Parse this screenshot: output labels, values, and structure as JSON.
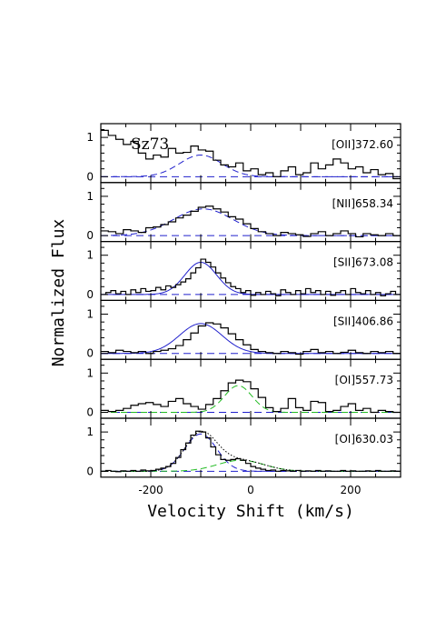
{
  "chart_data": {
    "type": "line",
    "star": "Sz73",
    "xlabel": "Velocity Shift (km/s)",
    "ylabel": "Normalized Flux",
    "xlim": [
      -300,
      300
    ],
    "xticks": [
      -200,
      0,
      200
    ],
    "yticks": [
      0,
      1
    ],
    "colors": {
      "observed": "#000000",
      "low_velocity_component": "#2020cc",
      "high_velocity_component": "#22bb22",
      "total_fit": "#000000",
      "zero_line": "#2020cc"
    },
    "panels": [
      {
        "label": "[OII]372.60",
        "ylim": [
          -0.15,
          1.35
        ],
        "bin_edges": [
          -300,
          -285,
          -270,
          -255,
          -240,
          -225,
          -210,
          -195,
          -180,
          -165,
          -150,
          -135,
          -120,
          -105,
          -90,
          -75,
          -60,
          -45,
          -30,
          -15,
          0,
          15,
          30,
          45,
          60,
          75,
          90,
          105,
          120,
          135,
          150,
          165,
          180,
          195,
          210,
          225,
          240,
          255,
          270,
          285,
          300
        ],
        "flux": [
          1.18,
          1.05,
          0.95,
          0.82,
          0.9,
          0.6,
          0.45,
          0.55,
          0.5,
          0.72,
          0.6,
          0.62,
          0.78,
          0.68,
          0.65,
          0.42,
          0.3,
          0.25,
          0.35,
          0.15,
          0.2,
          0.05,
          0.1,
          0.0,
          0.15,
          0.25,
          0.05,
          0.1,
          0.35,
          0.2,
          0.3,
          0.45,
          0.35,
          0.2,
          0.25,
          0.1,
          0.18,
          0.05,
          0.08,
          -0.05
        ],
        "components": [
          {
            "name": "blue",
            "center": -100,
            "fwhm": 100,
            "amp": 0.55,
            "dashed": true
          }
        ]
      },
      {
        "label": "[NII]658.34",
        "ylim": [
          -0.15,
          1.35
        ],
        "bin_edges": [
          -300,
          -285,
          -270,
          -255,
          -240,
          -225,
          -210,
          -195,
          -180,
          -165,
          -150,
          -135,
          -120,
          -105,
          -90,
          -75,
          -60,
          -45,
          -30,
          -15,
          0,
          15,
          30,
          45,
          60,
          75,
          90,
          105,
          120,
          135,
          150,
          165,
          180,
          195,
          210,
          225,
          240,
          255,
          270,
          285,
          300
        ],
        "flux": [
          0.12,
          0.1,
          0.05,
          0.15,
          0.12,
          0.08,
          0.2,
          0.22,
          0.28,
          0.35,
          0.45,
          0.52,
          0.62,
          0.72,
          0.75,
          0.68,
          0.6,
          0.48,
          0.42,
          0.3,
          0.18,
          0.1,
          0.05,
          0.0,
          0.08,
          0.05,
          0.02,
          -0.02,
          0.05,
          0.1,
          0.0,
          0.05,
          0.12,
          0.05,
          -0.03,
          0.05,
          0.02,
          0.0,
          0.05,
          0.0
        ],
        "components": [
          {
            "name": "blue",
            "center": -95,
            "fwhm": 140,
            "amp": 0.68,
            "dashed": true
          }
        ]
      },
      {
        "label": "[SII]673.08",
        "ylim": [
          -0.15,
          1.35
        ],
        "bin_edges": [
          -300,
          -290,
          -280,
          -270,
          -260,
          -250,
          -240,
          -230,
          -220,
          -210,
          -200,
          -190,
          -180,
          -170,
          -160,
          -150,
          -140,
          -130,
          -120,
          -110,
          -100,
          -90,
          -80,
          -70,
          -60,
          -50,
          -40,
          -30,
          -20,
          -10,
          0,
          10,
          20,
          30,
          40,
          50,
          60,
          70,
          80,
          90,
          100,
          110,
          120,
          130,
          140,
          150,
          160,
          170,
          180,
          190,
          200,
          210,
          220,
          230,
          240,
          250,
          260,
          270,
          280,
          290,
          300
        ],
        "flux": [
          0.0,
          0.05,
          0.1,
          0.02,
          0.08,
          0.0,
          0.12,
          0.05,
          0.15,
          0.08,
          0.1,
          0.18,
          0.12,
          0.22,
          0.18,
          0.25,
          0.32,
          0.4,
          0.55,
          0.68,
          0.9,
          0.82,
          0.7,
          0.55,
          0.42,
          0.3,
          0.2,
          0.15,
          0.05,
          0.1,
          -0.02,
          0.05,
          0.0,
          0.08,
          0.02,
          -0.03,
          0.12,
          0.05,
          0.0,
          0.1,
          0.02,
          0.15,
          0.05,
          0.1,
          0.0,
          0.08,
          -0.02,
          0.05,
          0.1,
          0.0,
          0.15,
          0.05,
          0.02,
          0.1,
          0.0,
          0.05,
          -0.03,
          0.02,
          0.08,
          0.0
        ],
        "components": [
          {
            "name": "blue",
            "center": -100,
            "fwhm": 75,
            "amp": 0.82,
            "dashed": false
          }
        ]
      },
      {
        "label": "[SII]406.86",
        "ylim": [
          -0.15,
          1.35
        ],
        "bin_edges": [
          -300,
          -285,
          -270,
          -255,
          -240,
          -225,
          -210,
          -195,
          -180,
          -165,
          -150,
          -135,
          -120,
          -105,
          -90,
          -75,
          -60,
          -45,
          -30,
          -15,
          0,
          15,
          30,
          45,
          60,
          75,
          90,
          105,
          120,
          135,
          150,
          165,
          180,
          195,
          210,
          225,
          240,
          255,
          270,
          285,
          300
        ],
        "flux": [
          0.05,
          0.02,
          0.08,
          0.05,
          0.02,
          0.05,
          0.0,
          0.05,
          0.08,
          0.12,
          0.2,
          0.35,
          0.52,
          0.7,
          0.78,
          0.75,
          0.65,
          0.5,
          0.35,
          0.22,
          0.1,
          0.05,
          0.02,
          0.0,
          0.05,
          0.02,
          -0.02,
          0.05,
          0.1,
          0.02,
          0.05,
          0.0,
          0.03,
          0.08,
          0.02,
          0.0,
          0.05,
          0.02,
          0.05,
          0.0
        ],
        "components": [
          {
            "name": "blue",
            "center": -100,
            "fwhm": 100,
            "amp": 0.76,
            "dashed": false
          }
        ]
      },
      {
        "label": "[OI]557.73",
        "ylim": [
          -0.15,
          1.35
        ],
        "bin_edges": [
          -300,
          -285,
          -270,
          -255,
          -240,
          -225,
          -210,
          -195,
          -180,
          -165,
          -150,
          -135,
          -120,
          -105,
          -90,
          -75,
          -60,
          -45,
          -30,
          -15,
          0,
          15,
          30,
          45,
          60,
          75,
          90,
          105,
          120,
          135,
          150,
          165,
          180,
          195,
          210,
          225,
          240,
          255,
          270,
          285,
          300
        ],
        "flux": [
          0.05,
          0.02,
          0.05,
          0.1,
          0.18,
          0.22,
          0.25,
          0.2,
          0.15,
          0.28,
          0.35,
          0.22,
          0.15,
          0.08,
          0.2,
          0.35,
          0.55,
          0.75,
          0.82,
          0.78,
          0.6,
          0.38,
          0.12,
          0.02,
          0.1,
          0.35,
          0.12,
          0.05,
          0.28,
          0.25,
          0.02,
          0.05,
          0.15,
          0.22,
          0.05,
          0.1,
          0.0,
          0.05,
          0.02,
          0.0
        ],
        "components": [
          {
            "name": "green",
            "center": -25,
            "fwhm": 65,
            "amp": 0.68,
            "dashed": true
          }
        ]
      },
      {
        "label": "[OI]630.03",
        "ylim": [
          -0.15,
          1.35
        ],
        "bin_edges": [
          -300,
          -290,
          -280,
          -270,
          -260,
          -250,
          -240,
          -230,
          -220,
          -210,
          -200,
          -190,
          -180,
          -170,
          -160,
          -150,
          -140,
          -130,
          -120,
          -110,
          -100,
          -90,
          -80,
          -70,
          -60,
          -50,
          -40,
          -30,
          -20,
          -10,
          0,
          10,
          20,
          30,
          40,
          50,
          60,
          70,
          80,
          90,
          100,
          110,
          120,
          130,
          140,
          150,
          160,
          170,
          180,
          190,
          200,
          210,
          220,
          230,
          240,
          250,
          260,
          270,
          280,
          290,
          300
        ],
        "flux": [
          0.0,
          0.02,
          0.0,
          -0.01,
          0.01,
          0.0,
          0.02,
          0.0,
          0.03,
          0.01,
          0.02,
          0.05,
          0.08,
          0.12,
          0.2,
          0.35,
          0.55,
          0.72,
          0.92,
          1.02,
          1.0,
          0.85,
          0.62,
          0.42,
          0.3,
          0.28,
          0.3,
          0.32,
          0.28,
          0.2,
          0.12,
          0.08,
          0.05,
          0.02,
          0.03,
          0.0,
          0.02,
          0.01,
          0.0,
          0.02,
          0.0,
          0.01,
          0.0,
          0.02,
          0.0,
          0.01,
          0.0,
          0.0,
          0.02,
          0.0,
          0.01,
          0.0,
          0.0,
          0.01,
          0.0,
          0.02,
          0.0,
          0.0,
          0.01,
          0.0
        ],
        "components": [
          {
            "name": "blue",
            "center": -100,
            "fwhm": 75,
            "amp": 0.95,
            "dashed": true
          },
          {
            "name": "green",
            "center": -20,
            "fwhm": 110,
            "amp": 0.28,
            "dashed": true
          }
        ],
        "show_total": true
      }
    ]
  }
}
